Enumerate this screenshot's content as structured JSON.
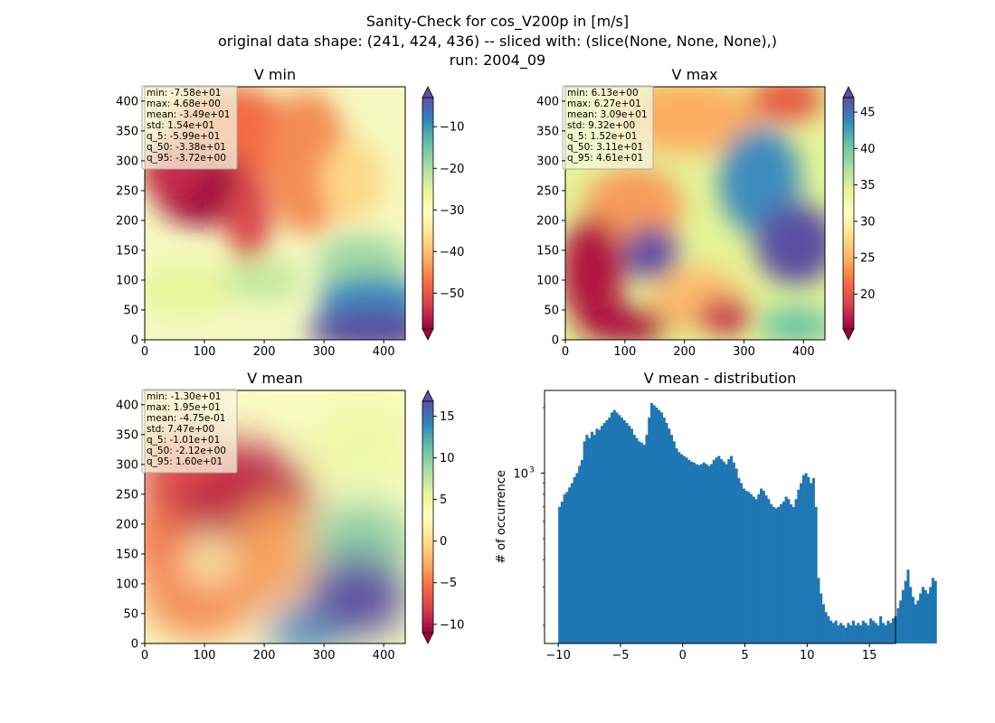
{
  "figure": {
    "title_line1": "Sanity-Check for cos_V200p in [m/s]",
    "title_line2": "original data shape: (241, 424, 436) -- sliced with: (slice(None, None, None),)",
    "title_line3": "run: 2004_09"
  },
  "colormap": "Spectral",
  "chart_data": [
    {
      "type": "heatmap",
      "title": "V min",
      "xlim": [
        0,
        436
      ],
      "ylim": [
        0,
        424
      ],
      "xticks": [
        "0",
        "100",
        "200",
        "300",
        "400"
      ],
      "yticks": [
        "0",
        "50",
        "100",
        "150",
        "200",
        "250",
        "300",
        "350",
        "400"
      ],
      "colorbar": {
        "range": [
          -58.6,
          -3.0
        ],
        "ticks": [
          "−10",
          "−20",
          "−30",
          "−40",
          "−50"
        ],
        "extend": "both"
      },
      "stats": [
        "min: -7.58e+01",
        "max: 4.68e+00",
        "mean: -3.49e+01",
        "std: 1.54e+01",
        "q_5: -5.99e+01",
        "q_50: -3.38e+01",
        "q_95: -3.72e+00"
      ]
    },
    {
      "type": "heatmap",
      "title": "V max",
      "xlim": [
        0,
        436
      ],
      "ylim": [
        0,
        424
      ],
      "xticks": [
        "0",
        "100",
        "200",
        "300",
        "400"
      ],
      "yticks": [
        "0",
        "50",
        "100",
        "150",
        "200",
        "250",
        "300",
        "350",
        "400"
      ],
      "colorbar": {
        "range": [
          15.2,
          47.0
        ],
        "ticks": [
          "45",
          "40",
          "35",
          "30",
          "25",
          "20"
        ],
        "extend": "both"
      },
      "stats": [
        "min: 6.13e+00",
        "max: 6.27e+01",
        "mean: 3.09e+01",
        "std: 9.32e+00",
        "q_5: 1.52e+01",
        "q_50: 3.11e+01",
        "q_95: 4.61e+01"
      ]
    },
    {
      "type": "heatmap",
      "title": "V mean",
      "xlim": [
        0,
        436
      ],
      "ylim": [
        0,
        424
      ],
      "xticks": [
        "0",
        "100",
        "200",
        "300",
        "400"
      ],
      "yticks": [
        "0",
        "50",
        "100",
        "150",
        "200",
        "250",
        "300",
        "350",
        "400"
      ],
      "colorbar": {
        "range": [
          -11.0,
          16.8
        ],
        "ticks": [
          "15",
          "10",
          "5",
          "0",
          "−5",
          "−10"
        ],
        "extend": "both"
      },
      "stats": [
        "min: -1.30e+01",
        "max: 1.95e+01",
        "mean: -4.75e-01",
        "std: 7.47e+00",
        "q_5: -1.01e+01",
        "q_50: -2.12e+00",
        "q_95: 1.60e+01"
      ]
    },
    {
      "type": "bar",
      "title": "V mean - distribution",
      "xlabel": "",
      "ylabel": "# of occurrence",
      "yscale": "log",
      "xlim": [
        -11.1,
        17.1
      ],
      "ylim": [
        165,
        2400
      ],
      "xticks": [
        "−10",
        "−5",
        "0",
        "5",
        "10",
        "15"
      ],
      "ytick_major_label": "10",
      "ytick_major_sup": "3",
      "bin_start": -10.0,
      "bin_width": 0.2,
      "bin_levels": [
        "minor low edge, values near the bottom of the log axis",
        "histogram reproduced with approximate counts per 0.2-wide bin"
      ],
      "values": [
        700,
        740,
        800,
        820,
        860,
        900,
        960,
        1000,
        1080,
        1150,
        1400,
        1500,
        1450,
        1550,
        1500,
        1600,
        1580,
        1650,
        1700,
        1750,
        1800,
        1900,
        1950,
        1900,
        1850,
        1800,
        1750,
        1700,
        1650,
        1600,
        1500,
        1450,
        1400,
        1380,
        1350,
        1500,
        1800,
        2100,
        2050,
        2000,
        1950,
        1900,
        1800,
        1700,
        1600,
        1500,
        1400,
        1300,
        1250,
        1220,
        1200,
        1180,
        1150,
        1130,
        1120,
        1100,
        1090,
        1100,
        1120,
        1100,
        1080,
        1100,
        1150,
        1180,
        1200,
        1160,
        1130,
        1100,
        1160,
        1200,
        1120,
        1050,
        950,
        900,
        850,
        830,
        820,
        800,
        780,
        760,
        800,
        850,
        830,
        790,
        760,
        720,
        700,
        690,
        700,
        720,
        740,
        780,
        760,
        720,
        700,
        760,
        840,
        900,
        980,
        1000,
        960,
        900,
        950,
        700,
        330,
        280,
        250,
        230,
        220,
        210,
        205,
        210,
        200,
        205,
        200,
        195,
        205,
        200,
        210,
        200,
        205,
        200,
        210,
        205,
        200,
        215,
        210,
        205,
        200,
        220,
        205,
        200,
        210,
        205,
        215,
        220,
        240,
        260,
        290,
        320,
        360,
        300,
        270,
        250,
        260,
        280,
        300,
        290,
        280,
        300,
        330,
        320
      ]
    }
  ]
}
